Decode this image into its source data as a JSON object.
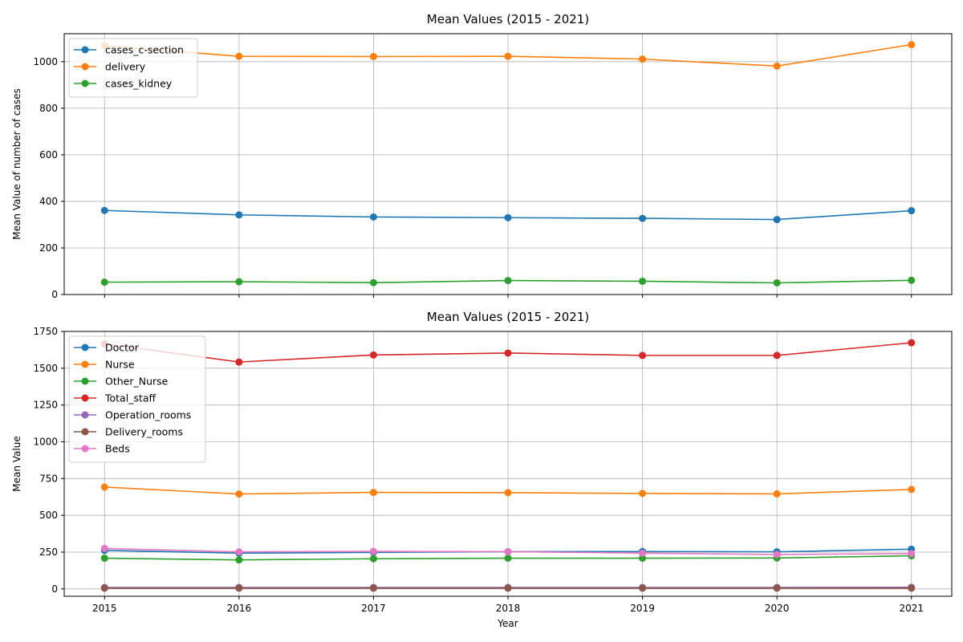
{
  "chart_data": [
    {
      "type": "line",
      "title": "Mean Values (2015 - 2021)",
      "xlabel": "",
      "ylabel": "Mean Value of number of cases",
      "x": [
        2015,
        2016,
        2017,
        2018,
        2019,
        2020,
        2021
      ],
      "xlim": [
        2014.7,
        2021.3
      ],
      "ylim": [
        0,
        1120
      ],
      "yticks": [
        0,
        200,
        400,
        600,
        800,
        1000
      ],
      "grid": true,
      "legend": "top-left",
      "series": [
        {
          "name": "cases_c-section",
          "color": "#1f77b4",
          "values": [
            361,
            342,
            333,
            330,
            327,
            322,
            360
          ]
        },
        {
          "name": "delivery",
          "color": "#ff7f0e",
          "values": [
            1068,
            1023,
            1022,
            1023,
            1011,
            981,
            1073
          ]
        },
        {
          "name": "cases_kidney",
          "color": "#2ca02c",
          "values": [
            53,
            55,
            51,
            60,
            57,
            50,
            61
          ]
        }
      ]
    },
    {
      "type": "line",
      "title": "Mean Values (2015 - 2021)",
      "xlabel": "Year",
      "ylabel": "Mean Value",
      "x": [
        2015,
        2016,
        2017,
        2018,
        2019,
        2020,
        2021
      ],
      "xlim": [
        2014.7,
        2021.3
      ],
      "ylim": [
        -50,
        1750
      ],
      "yticks": [
        0,
        250,
        500,
        750,
        1000,
        1250,
        1500,
        1750
      ],
      "grid": true,
      "legend": "top-left",
      "series": [
        {
          "name": "Doctor",
          "color": "#1f77b4",
          "values": [
            262,
            243,
            248,
            253,
            254,
            252,
            270
          ]
        },
        {
          "name": "Nurse",
          "color": "#ff7f0e",
          "values": [
            692,
            645,
            656,
            654,
            649,
            646,
            676
          ]
        },
        {
          "name": "Other_Nurse",
          "color": "#2ca02c",
          "values": [
            209,
            197,
            205,
            209,
            209,
            210,
            225
          ]
        },
        {
          "name": "Total_staff",
          "color": "#d62728",
          "values": [
            1665,
            1542,
            1590,
            1603,
            1587,
            1587,
            1673
          ]
        },
        {
          "name": "Operation_rooms",
          "color": "#9467bd",
          "values": [
            10,
            10,
            10,
            10,
            10,
            10,
            11
          ]
        },
        {
          "name": "Delivery_rooms",
          "color": "#8c564b",
          "values": [
            5,
            5,
            5,
            5,
            5,
            5,
            5
          ]
        },
        {
          "name": "Beds",
          "color": "#e377c2",
          "values": [
            275,
            252,
            255,
            253,
            243,
            234,
            240
          ]
        }
      ]
    }
  ]
}
